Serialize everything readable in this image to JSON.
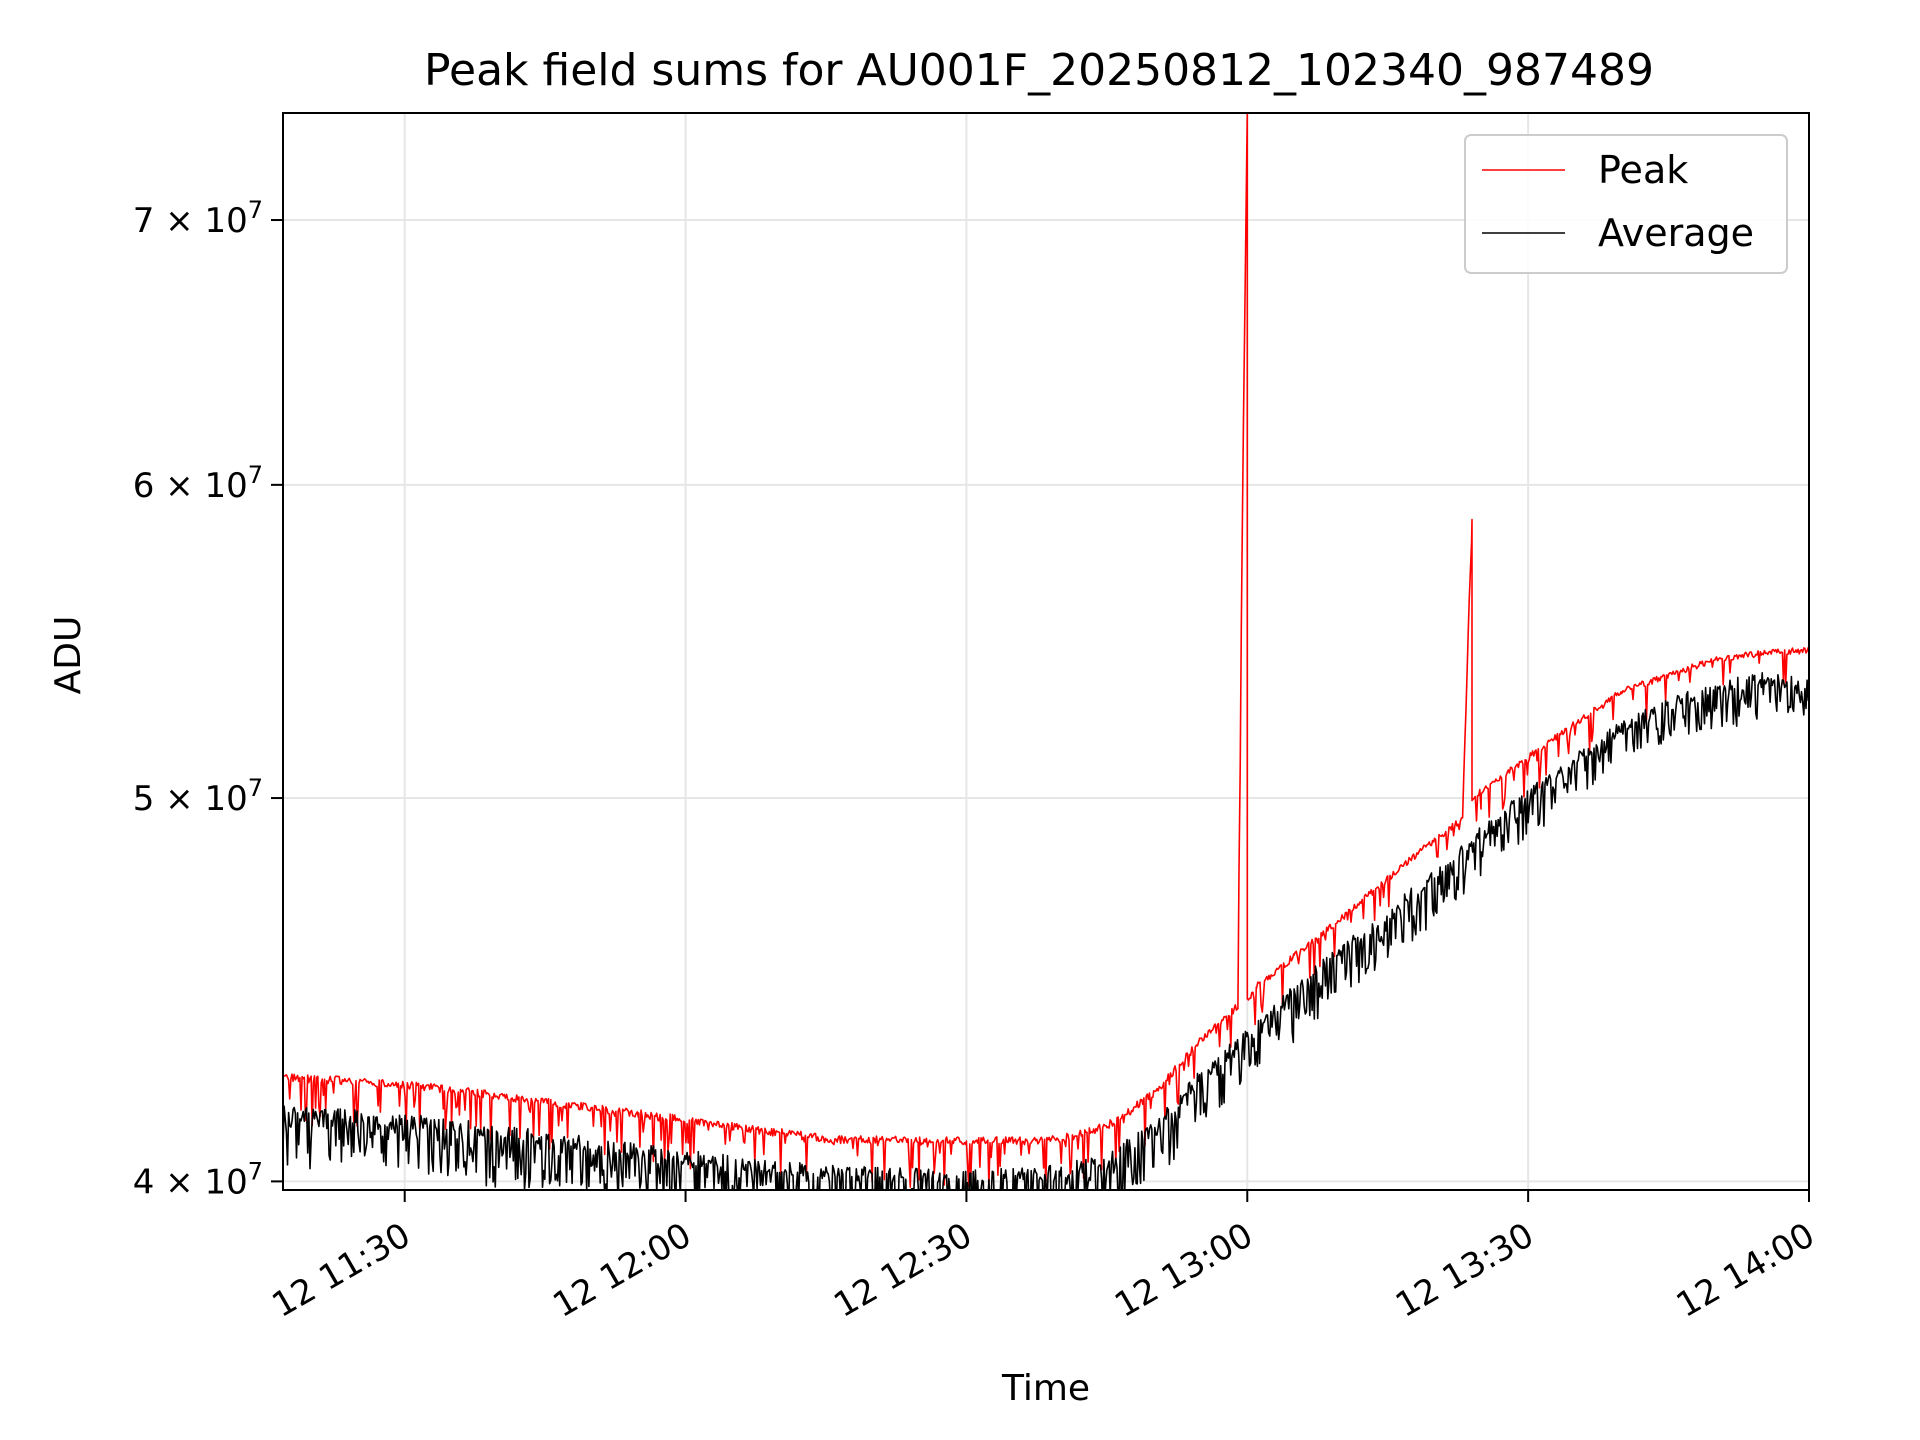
{
  "chart_data": {
    "type": "line",
    "title": "Peak field sums for AU001F_20250812_102340_987489",
    "xlabel": "Time",
    "ylabel": "ADU",
    "x_axis": {
      "type": "time",
      "start": "2025-08-12T11:17:00",
      "end": "2025-08-12T14:00:00",
      "ticks": [
        {
          "value": "2025-08-12T11:30:00",
          "label": "12 11:30"
        },
        {
          "value": "2025-08-12T12:00:00",
          "label": "12 12:00"
        },
        {
          "value": "2025-08-12T12:30:00",
          "label": "12 12:30"
        },
        {
          "value": "2025-08-12T13:00:00",
          "label": "12 13:00"
        },
        {
          "value": "2025-08-12T13:30:00",
          "label": "12 13:30"
        },
        {
          "value": "2025-08-12T14:00:00",
          "label": "12 14:00"
        }
      ]
    },
    "y_axis": {
      "scale": "log",
      "ylim": [
        39800000,
        74500000
      ],
      "ticks": [
        {
          "value": 40000000,
          "mantissa": "4",
          "base": "10",
          "exp": "7"
        },
        {
          "value": 50000000,
          "mantissa": "5",
          "base": "10",
          "exp": "7"
        },
        {
          "value": 60000000,
          "mantissa": "6",
          "base": "10",
          "exp": "7"
        },
        {
          "value": 70000000,
          "mantissa": "7",
          "base": "10",
          "exp": "7"
        }
      ]
    },
    "grid": true,
    "legend_position": "top-right",
    "series": [
      {
        "name": "Peak",
        "color": "#ff0000",
        "x": [
          "11:17",
          "11:25",
          "11:35",
          "11:45",
          "11:55",
          "12:05",
          "12:15",
          "12:25",
          "12:30",
          "12:35",
          "12:40",
          "12:45",
          "12:50",
          "12:55",
          "12:59",
          "13:00",
          "13:00",
          "13:01",
          "13:05",
          "13:10",
          "13:15",
          "13:20",
          "13:23",
          "13:24",
          "13:24",
          "13:25",
          "13:30",
          "13:35",
          "13:40",
          "13:45",
          "13:50",
          "13:55",
          "14:00"
        ],
        "values": [
          42600000,
          42500000,
          42300000,
          42000000,
          41700000,
          41400000,
          41100000,
          41050000,
          41050000,
          41050000,
          41100000,
          41400000,
          42200000,
          43500000,
          44400000,
          74500000,
          44600000,
          44900000,
          45700000,
          46700000,
          47800000,
          48900000,
          49500000,
          58800000,
          50000000,
          50300000,
          51300000,
          52300000,
          53300000,
          53800000,
          54300000,
          54500000,
          54600000
        ]
      },
      {
        "name": "Average",
        "color": "#000000",
        "x": [
          "11:17",
          "11:25",
          "11:35",
          "11:45",
          "11:55",
          "12:05",
          "12:15",
          "12:25",
          "12:30",
          "12:35",
          "12:40",
          "12:45",
          "12:50",
          "12:55",
          "13:00",
          "13:05",
          "13:10",
          "13:15",
          "13:20",
          "13:25",
          "13:30",
          "13:35",
          "13:40",
          "13:45",
          "13:50",
          "13:55",
          "14:00"
        ],
        "values": [
          41800000,
          41700000,
          41500000,
          41200000,
          40900000,
          40600000,
          40400000,
          40300000,
          40300000,
          40300000,
          40400000,
          40700000,
          41400000,
          42700000,
          43700000,
          44900000,
          45900000,
          46900000,
          48000000,
          49200000,
          50300000,
          51300000,
          52300000,
          53000000,
          53500000,
          53800000,
          53600000
        ]
      }
    ]
  }
}
